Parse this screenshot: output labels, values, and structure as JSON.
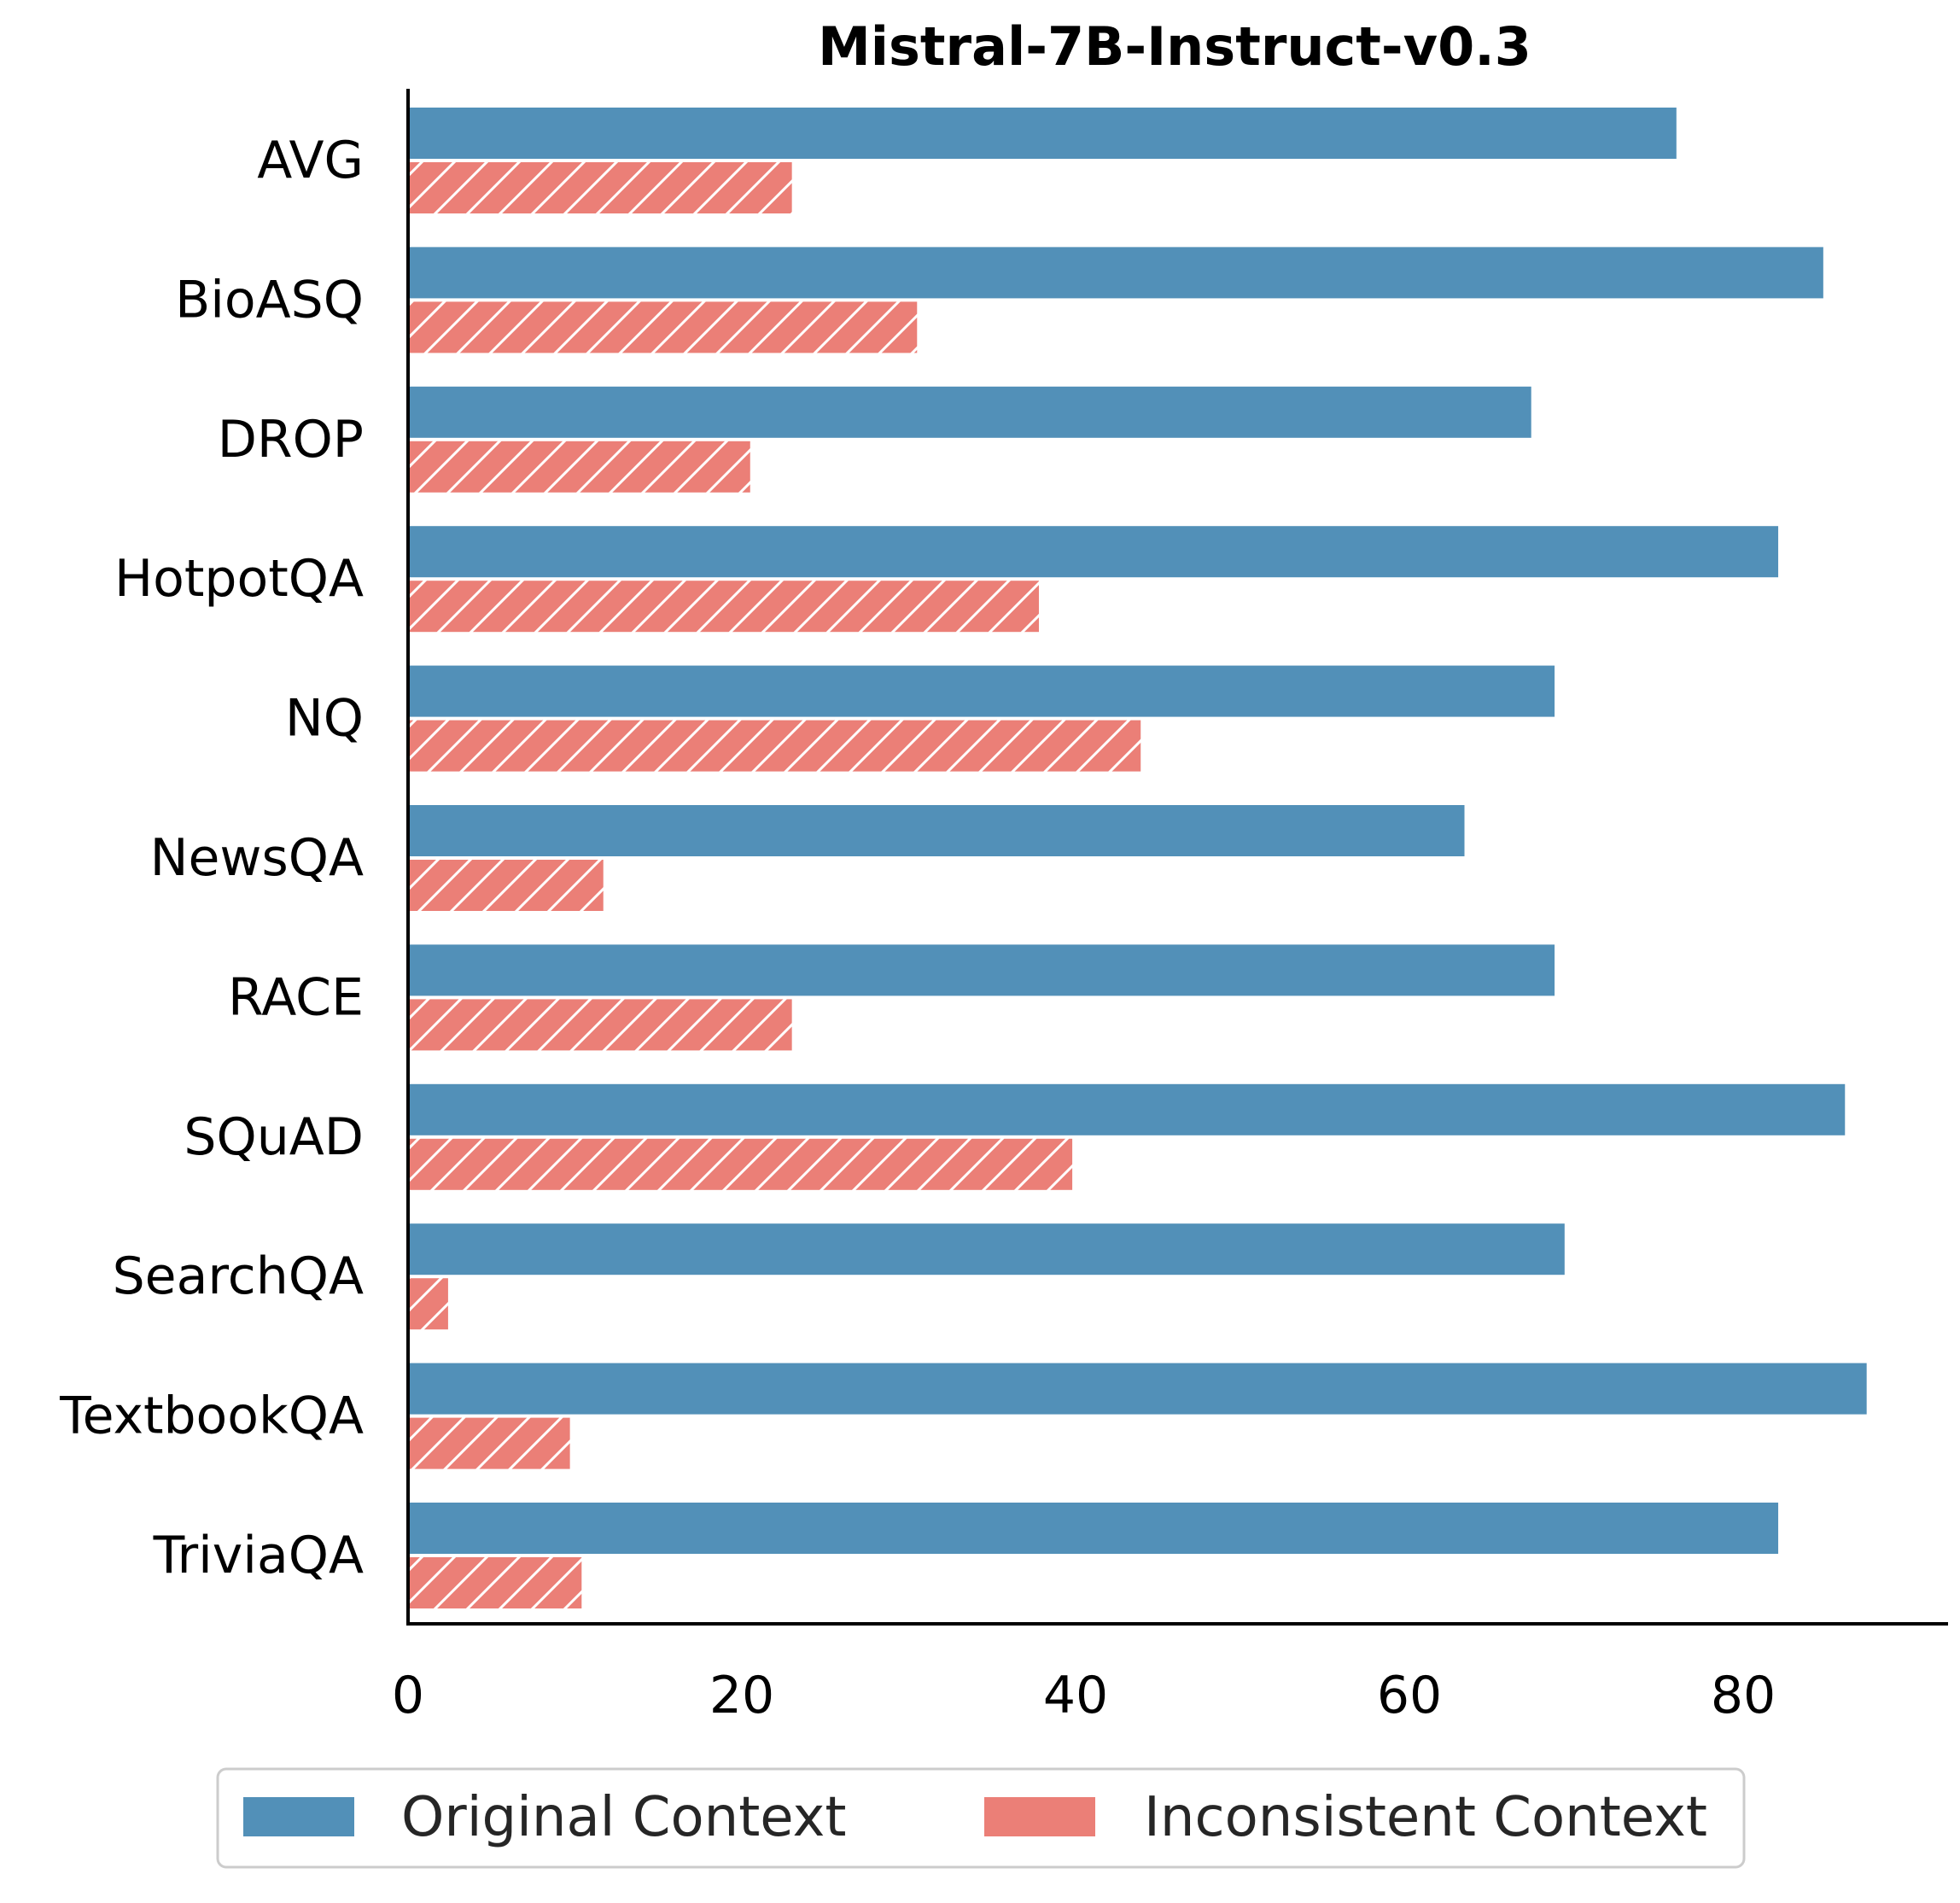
{
  "colors": {
    "original": "#5290b8",
    "inconsistent": "#eb7f77",
    "hatch": "#ffffff",
    "axis": "#000000"
  },
  "chart_data": {
    "type": "bar",
    "orientation": "horizontal",
    "title": "Mistral-7B-Instruct-v0.3",
    "xlabel": "",
    "ylabel": "",
    "xlim": [
      0,
      92
    ],
    "x_ticks": [
      "0",
      "20",
      "40",
      "60",
      "80"
    ],
    "categories": [
      "AVG",
      "BioASQ",
      "DROP",
      "HotpotQA",
      "NQ",
      "NewsQA",
      "RACE",
      "SQuAD",
      "SearchQA",
      "TextbookQA",
      "TriviaQA"
    ],
    "series": [
      {
        "name": "Original Context",
        "pattern": "solid",
        "values": [
          76.0,
          84.8,
          67.3,
          82.1,
          68.7,
          63.3,
          68.7,
          86.1,
          69.3,
          87.4,
          82.1
        ]
      },
      {
        "name": "Inconsistent Context",
        "pattern": "hatched",
        "values": [
          23.0,
          30.5,
          20.5,
          37.8,
          43.9,
          11.7,
          23.0,
          39.8,
          2.4,
          9.7,
          10.4
        ]
      }
    ],
    "grid": false,
    "legend_position": "bottom-center"
  }
}
